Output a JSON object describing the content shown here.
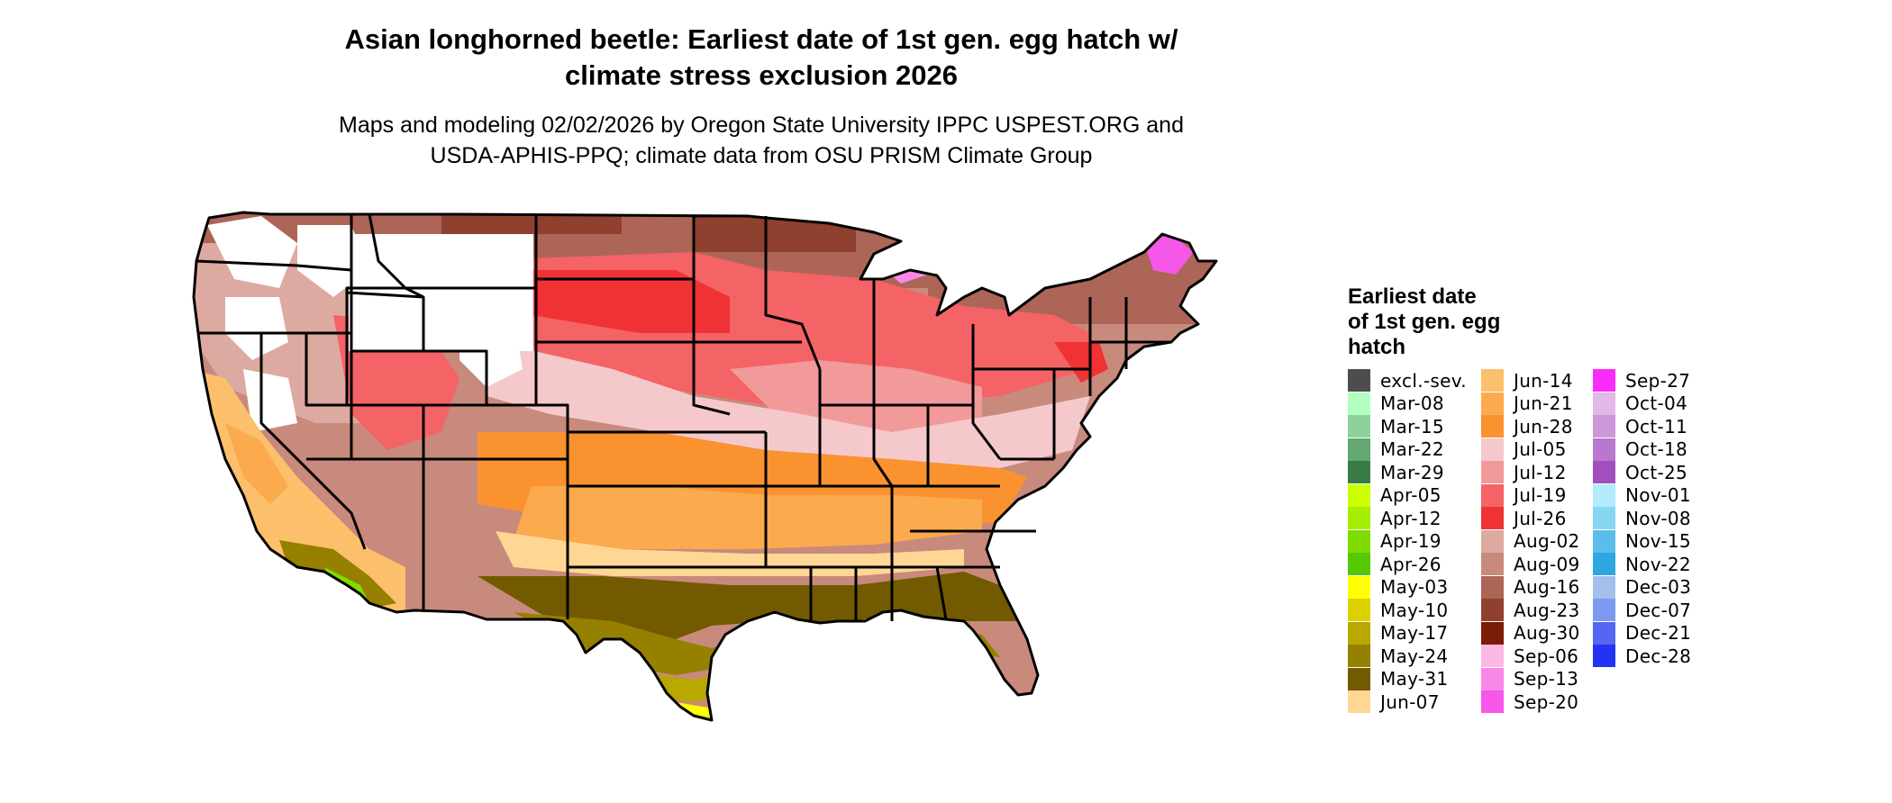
{
  "figure": {
    "title_line1": "Asian longhorned beetle: Earliest date of 1st gen. egg hatch w/",
    "title_line2": "climate stress exclusion 2026",
    "subtitle_line1": "Maps and modeling 02/02/2026 by Oregon State University IPPC USPEST.ORG and",
    "subtitle_line2": "USDA-APHIS-PPQ; climate data from OSU PRISM Climate Group"
  },
  "legend": {
    "title_line1": "Earliest date",
    "title_line2": "of 1st gen. egg",
    "title_line3": "hatch",
    "columns": [
      [
        {
          "label": "excl.-sev.",
          "color": "#4d4d4d"
        },
        {
          "label": "Mar-08",
          "color": "#b3ffbf"
        },
        {
          "label": "Mar-15",
          "color": "#8fd19b"
        },
        {
          "label": "Mar-22",
          "color": "#64a872"
        },
        {
          "label": "Mar-29",
          "color": "#3a7a45"
        },
        {
          "label": "Apr-05",
          "color": "#ccff00"
        },
        {
          "label": "Apr-12",
          "color": "#a6ee00"
        },
        {
          "label": "Apr-19",
          "color": "#7fdc00"
        },
        {
          "label": "Apr-26",
          "color": "#55c800"
        },
        {
          "label": "May-03",
          "color": "#ffff00"
        },
        {
          "label": "May-10",
          "color": "#ddd000"
        },
        {
          "label": "May-17",
          "color": "#b8a800"
        },
        {
          "label": "May-24",
          "color": "#958000"
        },
        {
          "label": "May-31",
          "color": "#735a00"
        },
        {
          "label": "Jun-07",
          "color": "#ffd795"
        }
      ],
      [
        {
          "label": "Jun-14",
          "color": "#fcc06c"
        },
        {
          "label": "Jun-21",
          "color": "#fbaa4d"
        },
        {
          "label": "Jun-28",
          "color": "#fa9230"
        },
        {
          "label": "Jul-05",
          "color": "#f5c9cc"
        },
        {
          "label": "Jul-12",
          "color": "#f2999a"
        },
        {
          "label": "Jul-19",
          "color": "#f46366"
        },
        {
          "label": "Jul-26",
          "color": "#f03235"
        },
        {
          "label": "Aug-02",
          "color": "#dcaaa0"
        },
        {
          "label": "Aug-09",
          "color": "#c88a7c"
        },
        {
          "label": "Aug-16",
          "color": "#ad6557"
        },
        {
          "label": "Aug-23",
          "color": "#90402f"
        },
        {
          "label": "Aug-30",
          "color": "#7a1c08"
        },
        {
          "label": "Sep-06",
          "color": "#fbb8e4"
        },
        {
          "label": "Sep-13",
          "color": "#f888e6"
        },
        {
          "label": "Sep-20",
          "color": "#f558e8"
        }
      ],
      [
        {
          "label": "Sep-27",
          "color": "#fa2cfb"
        },
        {
          "label": "Oct-04",
          "color": "#e1b8e6"
        },
        {
          "label": "Oct-11",
          "color": "#cc98da"
        },
        {
          "label": "Oct-18",
          "color": "#b978cd"
        },
        {
          "label": "Oct-25",
          "color": "#a14fbe"
        },
        {
          "label": "Nov-01",
          "color": "#b3ebff"
        },
        {
          "label": "Nov-08",
          "color": "#88d6f4"
        },
        {
          "label": "Nov-15",
          "color": "#5cbcec"
        },
        {
          "label": "Nov-22",
          "color": "#2ea6e0"
        },
        {
          "label": "Dec-03",
          "color": "#a3c0ec"
        },
        {
          "label": "Dec-07",
          "color": "#7c9bf0"
        },
        {
          "label": "Dec-21",
          "color": "#5566f3"
        },
        {
          "label": "Dec-28",
          "color": "#2233f4"
        }
      ]
    ]
  }
}
